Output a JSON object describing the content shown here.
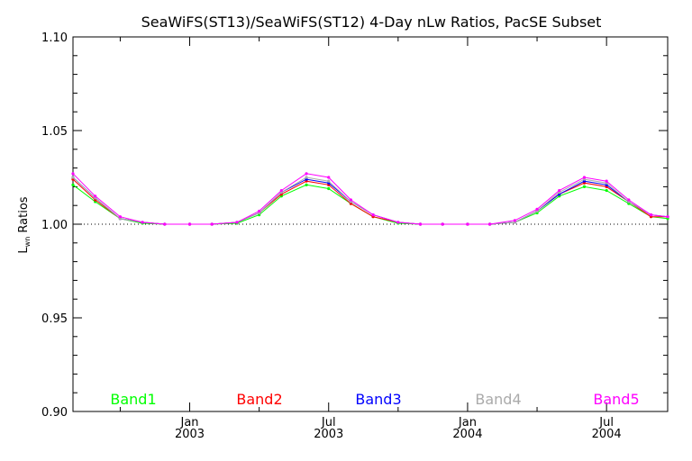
{
  "chart_data": {
    "type": "line",
    "title": "SeaWiFS(ST13)/SeaWiFS(ST12) 4-Day nLw Ratios, PacSE Subset",
    "ylabel": "L",
    "ylabel_sub": "wn",
    "ylabel_rest": " Ratios",
    "xlabel": "",
    "ylim": [
      0.9,
      1.1
    ],
    "yticks": [
      "0.90",
      "0.95",
      "1.00",
      "1.05",
      "1.10"
    ],
    "reference_line": 1.0,
    "x_ticks": [
      {
        "month": "Jan",
        "year": "2003",
        "x": 2003.0
      },
      {
        "month": "Jul",
        "year": "2003",
        "x": 2003.5
      },
      {
        "month": "Jan",
        "year": "2004",
        "x": 2004.0
      },
      {
        "month": "Jul",
        "year": "2004",
        "x": 2004.5
      }
    ],
    "xlim": [
      2002.58,
      2004.72
    ],
    "grid": false,
    "legend_placement": "bottom",
    "x": [
      2002.58,
      2002.66,
      2002.75,
      2002.83,
      2002.91,
      2003.0,
      2003.08,
      2003.17,
      2003.25,
      2003.33,
      2003.42,
      2003.5,
      2003.58,
      2003.66,
      2003.75,
      2003.83,
      2003.91,
      2004.0,
      2004.08,
      2004.17,
      2004.25,
      2004.33,
      2004.42,
      2004.5,
      2004.58,
      2004.66,
      2004.72
    ],
    "series": [
      {
        "name": "Band1",
        "color": "#00ff00",
        "values": [
          1.021,
          1.012,
          1.003,
          1.0005,
          1.0,
          1.0,
          1.0,
          1.0005,
          1.005,
          1.015,
          1.021,
          1.019,
          1.011,
          1.004,
          1.0005,
          1.0,
          1.0,
          1.0,
          1.0,
          1.001,
          1.006,
          1.015,
          1.02,
          1.018,
          1.011,
          1.004,
          1.003
        ]
      },
      {
        "name": "Band2",
        "color": "#ff0000",
        "values": [
          1.024,
          1.013,
          1.003,
          1.001,
          1.0,
          1.0,
          1.0,
          1.001,
          1.006,
          1.016,
          1.023,
          1.021,
          1.011,
          1.004,
          1.001,
          1.0,
          1.0,
          1.0,
          1.0,
          1.001,
          1.007,
          1.016,
          1.022,
          1.02,
          1.012,
          1.004,
          1.004
        ]
      },
      {
        "name": "Band3",
        "color": "#0000ff",
        "values": [
          1.025,
          1.014,
          1.003,
          1.001,
          1.0,
          1.0,
          1.0,
          1.001,
          1.006,
          1.017,
          1.024,
          1.022,
          1.012,
          1.005,
          1.001,
          1.0,
          1.0,
          1.0,
          1.0,
          1.001,
          1.007,
          1.016,
          1.023,
          1.021,
          1.012,
          1.005,
          1.004
        ]
      },
      {
        "name": "Band4",
        "color": "#aaaaaa",
        "values": [
          1.025,
          1.014,
          1.003,
          1.001,
          1.0,
          1.0,
          1.0,
          1.001,
          1.006,
          1.017,
          1.025,
          1.023,
          1.012,
          1.005,
          1.001,
          1.0,
          1.0,
          1.0,
          1.0,
          1.001,
          1.007,
          1.017,
          1.024,
          1.022,
          1.012,
          1.005,
          1.004
        ]
      },
      {
        "name": "Band5",
        "color": "#ff00ff",
        "values": [
          1.027,
          1.015,
          1.004,
          1.001,
          1.0,
          1.0,
          1.0,
          1.001,
          1.007,
          1.018,
          1.027,
          1.025,
          1.013,
          1.005,
          1.001,
          1.0,
          1.0,
          1.0,
          1.0,
          1.002,
          1.008,
          1.018,
          1.025,
          1.023,
          1.013,
          1.005,
          1.004
        ]
      }
    ]
  }
}
